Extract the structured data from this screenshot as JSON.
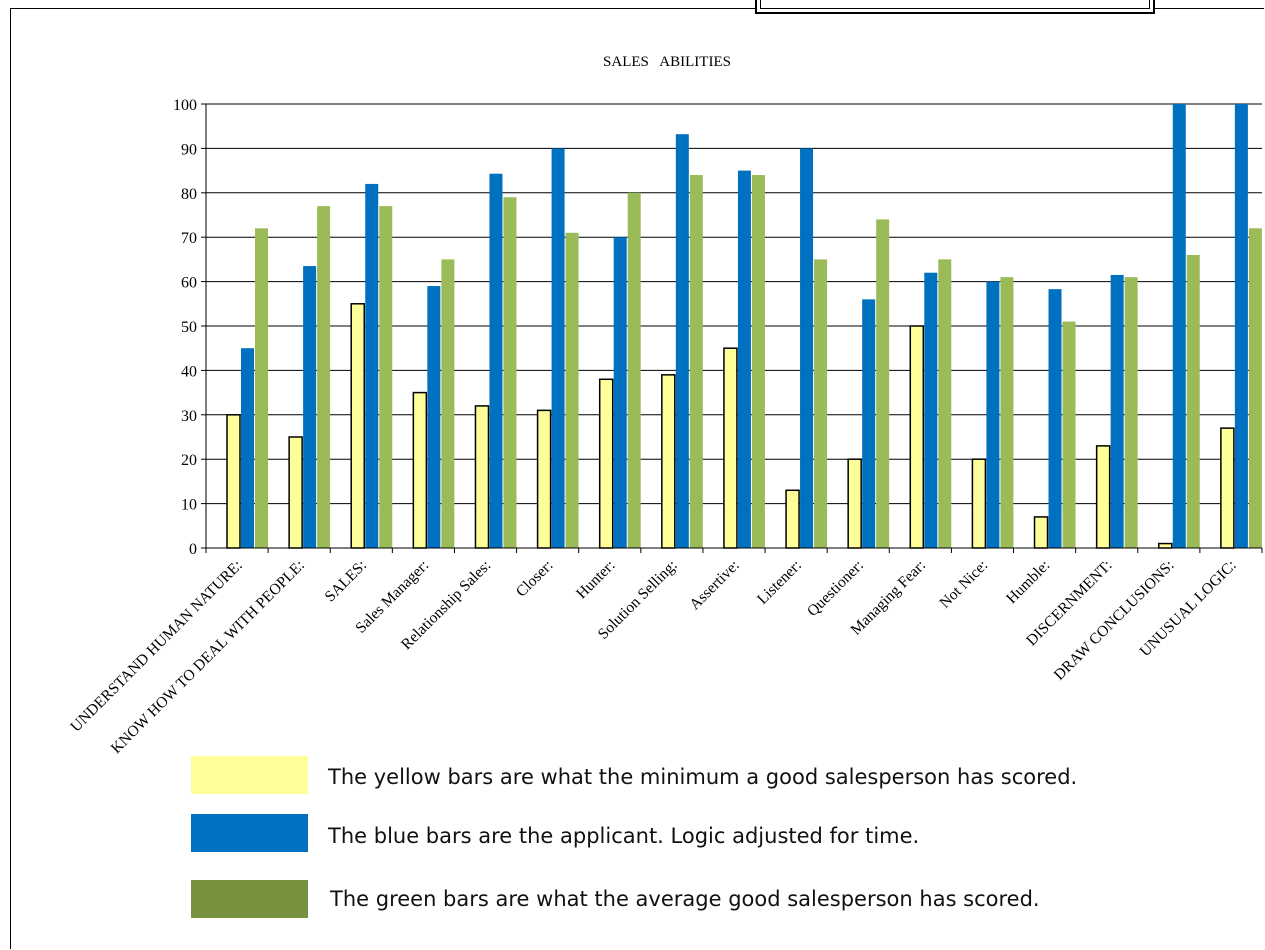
{
  "chart_data": {
    "type": "bar",
    "title": "SALES   ABILITIES",
    "categories": [
      "UNDERSTAND HUMAN NATURE:",
      "KNOW HOW TO DEAL WITH PEOPLE:",
      "SALES:",
      "Sales Manager:",
      "Relationship Sales:",
      "Closer:",
      "Hunter:",
      "Solution Selling:",
      "Assertive:",
      "Listener:",
      "Questioner:",
      "Managing Fear:",
      "Not Nice:",
      "Humble:",
      "DISCERNMENT:",
      "DRAW CONCLUSIONS:",
      "UNUSUAL LOGIC:"
    ],
    "series": [
      {
        "color": "#FFFF99",
        "values": [
          30,
          25,
          55,
          35,
          32,
          31,
          38,
          39,
          45,
          13,
          20,
          50,
          20,
          7,
          23,
          1,
          27
        ]
      },
      {
        "color": "#0070C0",
        "values": [
          45,
          63.5,
          82,
          59,
          84.3,
          90,
          70,
          93.2,
          85,
          90,
          56,
          62,
          60,
          58.3,
          61.5,
          100,
          100
        ]
      },
      {
        "color": "#9BBB59",
        "values": [
          72,
          77,
          77,
          65,
          79,
          71,
          80,
          84,
          84,
          65,
          74,
          65,
          61,
          51,
          61,
          66,
          72
        ]
      }
    ],
    "ylim": [
      0,
      100
    ],
    "yticks": [
      0,
      10,
      20,
      30,
      40,
      50,
      60,
      70,
      80,
      90,
      100
    ],
    "grid": true
  },
  "legend": [
    {
      "color": "#FFFF99",
      "text": "The yellow bars are what the minimum a good salesperson has scored."
    },
    {
      "color": "#0070C0",
      "text": "The blue bars are the applicant. Logic adjusted for time."
    },
    {
      "color": "#76923C",
      "text": "The green bars are what the average good salesperson has scored."
    }
  ]
}
